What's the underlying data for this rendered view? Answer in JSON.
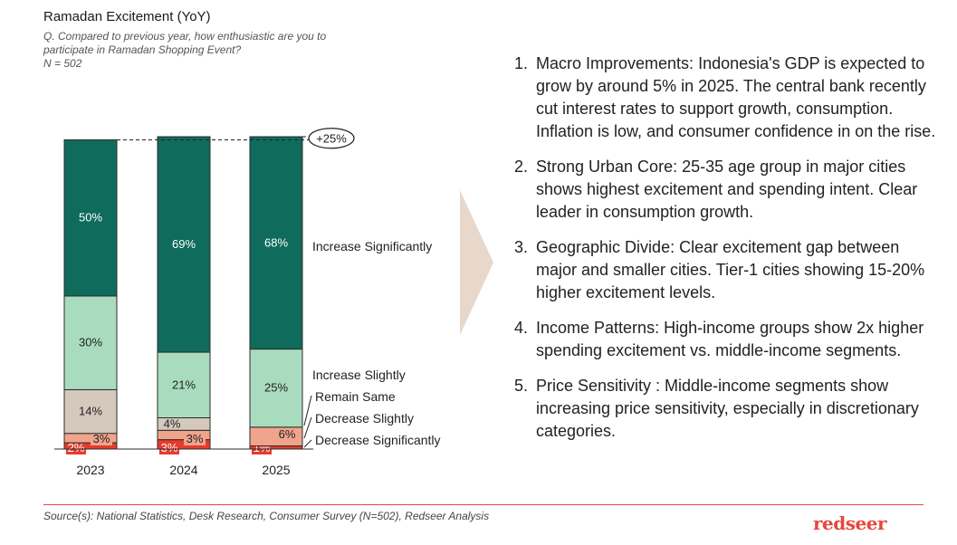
{
  "header": {
    "title": "Ramadan Excitement (YoY)",
    "question": "Q. Compared to previous year, how enthusiastic are you to participate in Ramadan Shopping Event?",
    "sample": "N = 502"
  },
  "chart_data": {
    "type": "stacked-bar",
    "title": "Ramadan Excitement (YoY)",
    "categories": [
      "2023",
      "2024",
      "2025"
    ],
    "series": [
      {
        "name": "Decrease Significantly",
        "color": "#e63b2e",
        "values": [
          2,
          3,
          1
        ],
        "labels": [
          "2%",
          "3%",
          "1%"
        ]
      },
      {
        "name": "Decrease Slightly",
        "color": "#f0a48c",
        "values": [
          3,
          3,
          6
        ],
        "labels": [
          "3%",
          "3%",
          "6%"
        ]
      },
      {
        "name": "Remain Same",
        "color": "#d5c8bd",
        "values": [
          14,
          4,
          0
        ],
        "labels": [
          "14%",
          "4%",
          ""
        ]
      },
      {
        "name": "Increase Slightly",
        "color": "#a9dcbe",
        "values": [
          30,
          21,
          25
        ],
        "labels": [
          "30%",
          "21%",
          "25%"
        ]
      },
      {
        "name": "Increase Significantly",
        "color": "#0f6b5b",
        "values": [
          50,
          69,
          68
        ],
        "labels": [
          "50%",
          "69%",
          "68%"
        ]
      }
    ],
    "annotation": "+25%",
    "legend_labels": [
      "Increase Significantly",
      "Increase Slightly",
      "Remain Same",
      "Decrease Slightly",
      "Decrease Significantly"
    ]
  },
  "points": [
    {
      "num": "1.",
      "heading": "Macro Improvements:",
      "text": " Indonesia's GDP is expected to grow by around 5% in 2025. The central bank recently cut interest rates to support growth, consumption. Inflation is low, and consumer confidence in on the rise."
    },
    {
      "num": "2.",
      "heading": "Strong Urban Core",
      "text": ": 25-35 age group in major cities shows highest excitement and spending intent. Clear leader in consumption growth."
    },
    {
      "num": "3.",
      "heading": "Geographic Divide",
      "text": ": Clear excitement gap between major and smaller cities. Tier-1 cities showing 15-20% higher excitement levels."
    },
    {
      "num": "4.",
      "heading": "Income Patterns",
      "text": ": High-income groups show 2x higher spending excitement vs. middle-income segments."
    },
    {
      "num": "5.",
      "heading": "Price Sensitivity",
      "text": " : Middle-income segments show increasing price sensitivity, especially in discretionary categories."
    }
  ],
  "footer": {
    "source": "Source(s): National Statistics, Desk Research,  Consumer Survey (N=502), Redseer Analysis",
    "logo": "redseer"
  }
}
